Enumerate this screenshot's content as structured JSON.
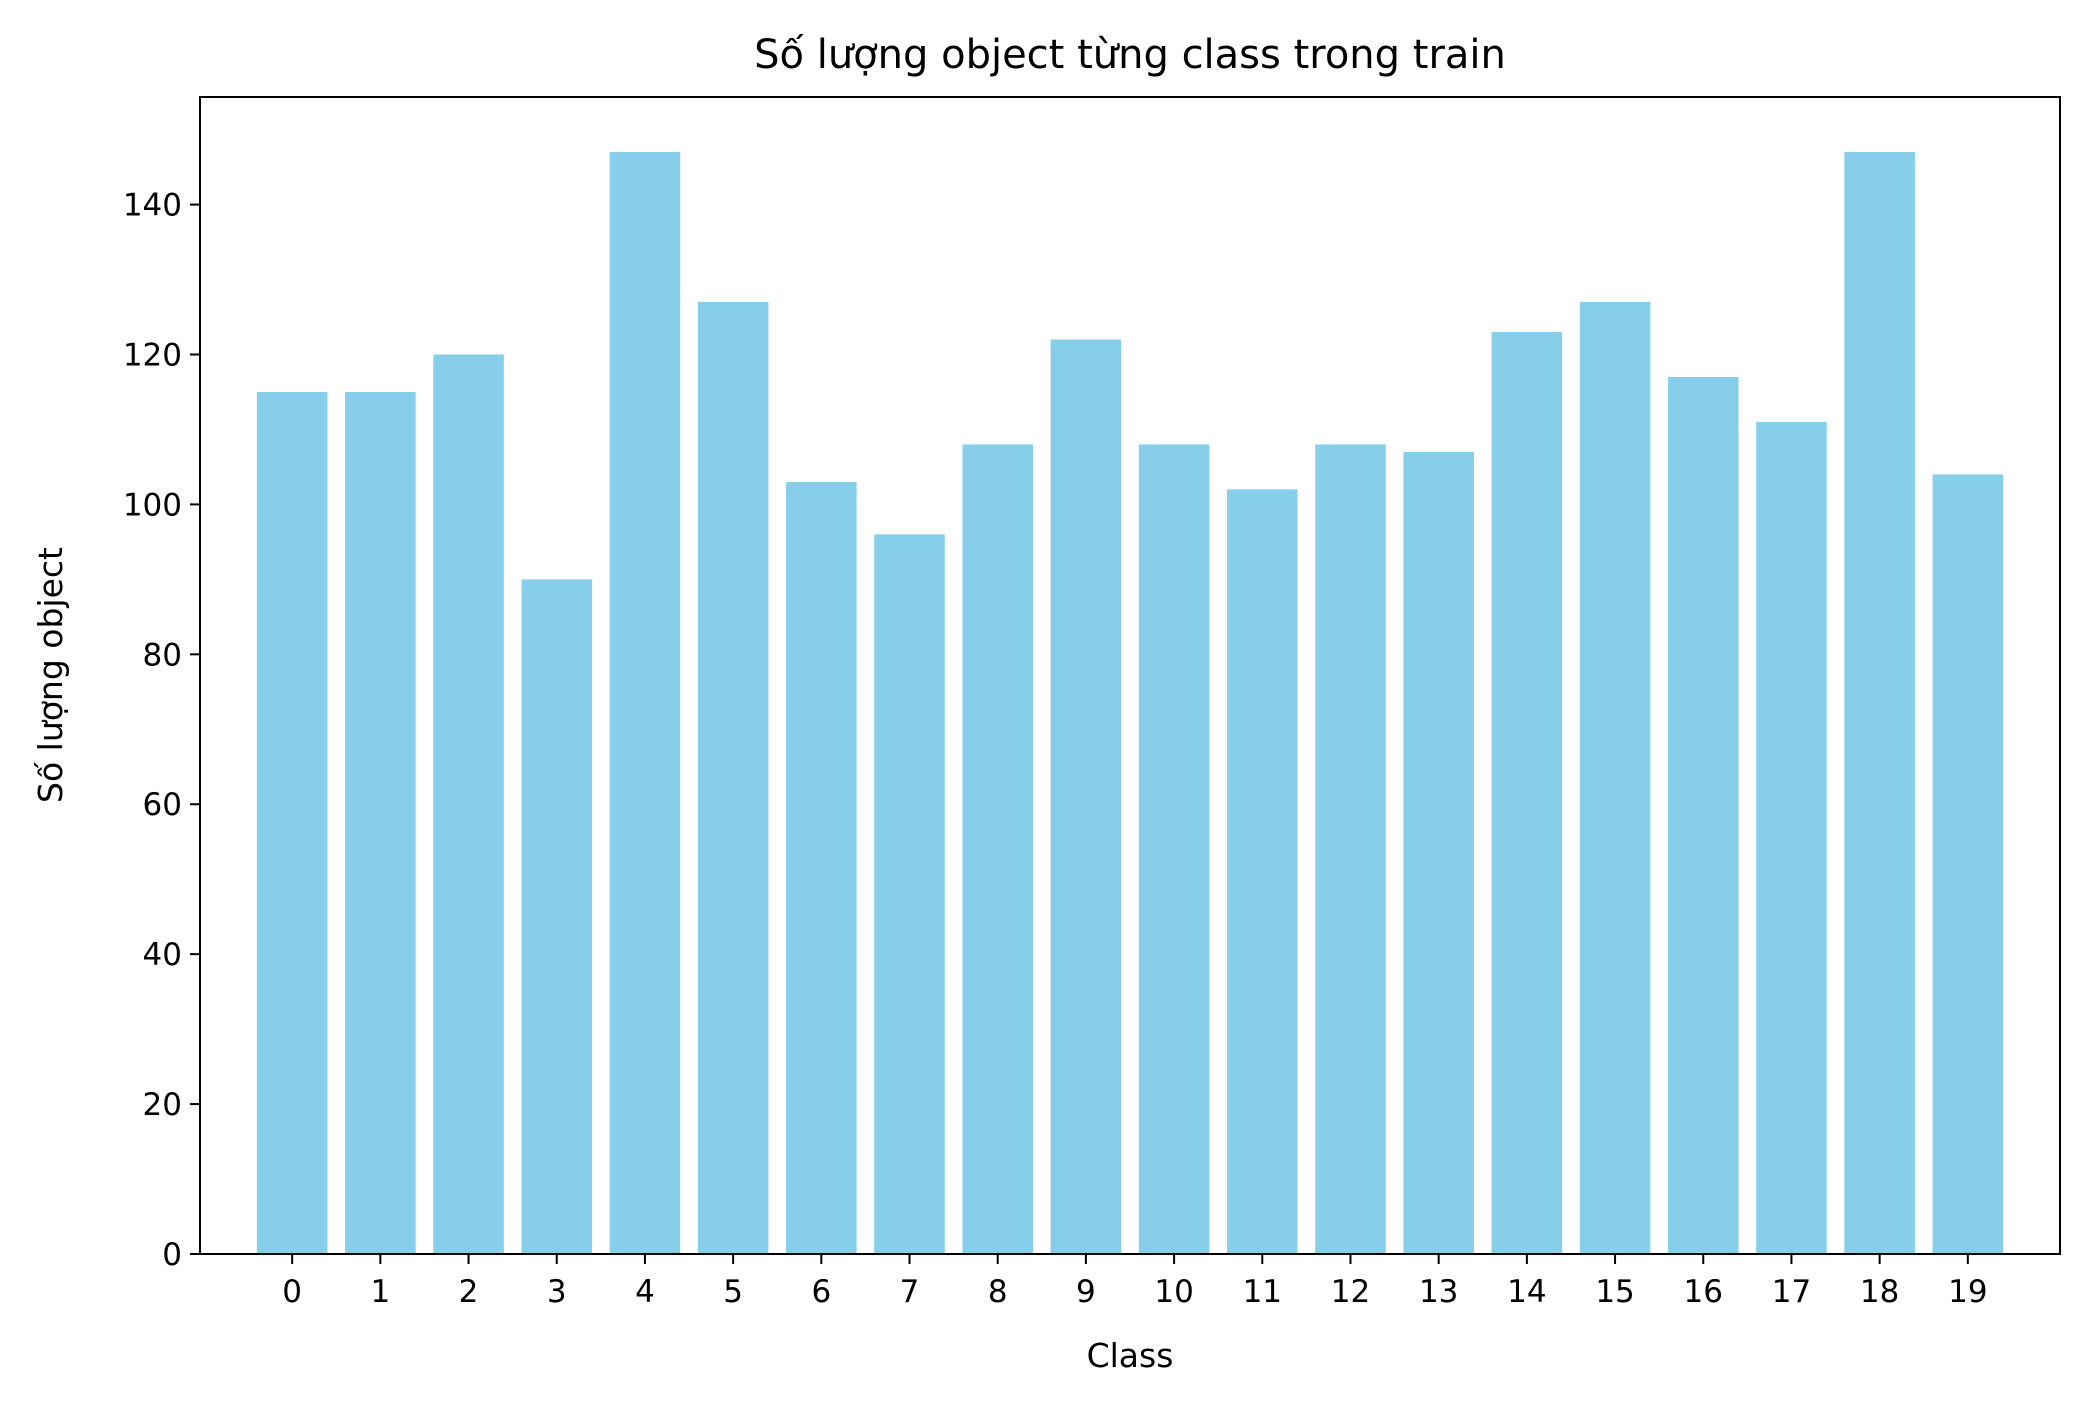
{
  "chart_data": {
    "type": "bar",
    "title": "Số lượng object từng class trong train",
    "xlabel": "Class",
    "ylabel": "Số lượng object",
    "categories": [
      "0",
      "1",
      "2",
      "3",
      "4",
      "5",
      "6",
      "7",
      "8",
      "9",
      "10",
      "11",
      "12",
      "13",
      "14",
      "15",
      "16",
      "17",
      "18",
      "19"
    ],
    "values": [
      115,
      115,
      120,
      90,
      147,
      127,
      103,
      96,
      108,
      122,
      108,
      102,
      108,
      107,
      123,
      127,
      117,
      111,
      147,
      104
    ],
    "ylim": [
      0,
      154.35
    ],
    "yticks": [
      0,
      20,
      40,
      60,
      80,
      100,
      120,
      140
    ],
    "bar_color": "#87CEEB",
    "grid": false,
    "legend": "none"
  }
}
